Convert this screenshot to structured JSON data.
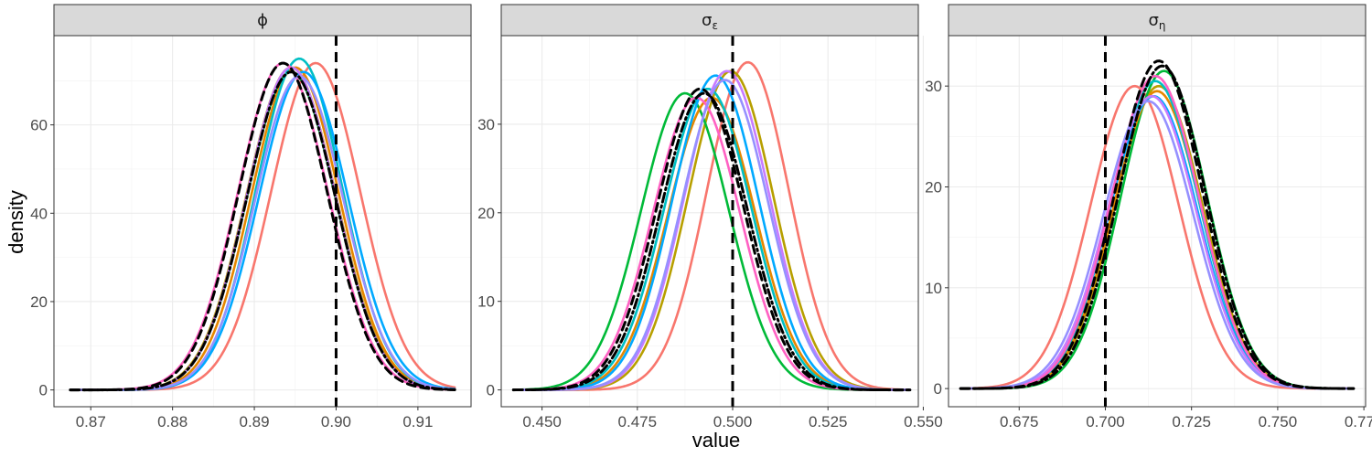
{
  "chart_data": {
    "type": "line",
    "subtype": "faceted density plot",
    "xlabel": "value",
    "ylabel": "density",
    "series_palette": [
      "#f8766d",
      "#b79f00",
      "#00ba38",
      "#e58700",
      "#00bfc4",
      "#00a9ff",
      "#c77cff",
      "#ff61c3",
      "#9590ff",
      "#619cff"
    ],
    "reference_line_color": "#000000",
    "facets": [
      {
        "title": "ϕ",
        "xlim": [
          0.8655,
          0.9165
        ],
        "ylim": [
          -3.8,
          80.2
        ],
        "xticks": [
          0.87,
          0.88,
          0.89,
          0.9,
          0.91
        ],
        "xtick_labels": [
          "0.87",
          "0.88",
          "0.89",
          "0.90",
          "0.91"
        ],
        "yticks": [
          0,
          20,
          40,
          60
        ],
        "ytick_labels": [
          "0",
          "20",
          "40",
          "60"
        ],
        "support": [
          0.8675,
          0.9145
        ],
        "true_value": 0.9,
        "densities": [
          {
            "color": "#f8766d",
            "mean": 0.8975,
            "sd": 0.00545,
            "peak": 74,
            "lw": 2.6
          },
          {
            "color": "#b79f00",
            "mean": 0.8945,
            "sd": 0.00545,
            "peak": 73,
            "lw": 2.6
          },
          {
            "color": "#00ba38",
            "mean": 0.8945,
            "sd": 0.0054,
            "peak": 72,
            "lw": 2.6
          },
          {
            "color": "#e58700",
            "mean": 0.895,
            "sd": 0.00535,
            "peak": 73,
            "lw": 2.6
          },
          {
            "color": "#00bfc4",
            "mean": 0.8955,
            "sd": 0.0053,
            "peak": 75,
            "lw": 2.6
          },
          {
            "color": "#00a9ff",
            "mean": 0.896,
            "sd": 0.00545,
            "peak": 72,
            "lw": 2.6
          },
          {
            "color": "#c77cff",
            "mean": 0.8945,
            "sd": 0.0054,
            "peak": 73,
            "lw": 2.6
          },
          {
            "color": "#ff61c3",
            "mean": 0.8935,
            "sd": 0.0055,
            "peak": 74,
            "lw": 2.6
          },
          {
            "color": "#9590ff",
            "mean": 0.8955,
            "sd": 0.0054,
            "peak": 71,
            "lw": 2.6
          },
          {
            "color": "#000000",
            "mean": 0.8935,
            "sd": 0.0054,
            "peak": 74,
            "lw": 3,
            "dash": "9 6"
          },
          {
            "color": "#000000",
            "mean": 0.8945,
            "sd": 0.0054,
            "peak": 72,
            "lw": 3,
            "dash": "10 4 2 4"
          }
        ]
      },
      {
        "title": "σ",
        "title_sub": "ε",
        "xlim": [
          0.4393,
          0.5487
        ],
        "ylim": [
          -1.9,
          40.0
        ],
        "xticks": [
          0.45,
          0.475,
          0.5,
          0.525,
          0.55
        ],
        "xtick_labels": [
          "0.450",
          "0.475",
          "0.500",
          "0.525",
          "0.550"
        ],
        "yticks": [
          0,
          10,
          20,
          30
        ],
        "ytick_labels": [
          "0",
          "10",
          "20",
          "30"
        ],
        "support": [
          0.4425,
          0.5465
        ],
        "true_value": 0.5,
        "densities": [
          {
            "color": "#f8766d",
            "mean": 0.504,
            "sd": 0.0108,
            "peak": 37,
            "lw": 2.6
          },
          {
            "color": "#b79f00",
            "mean": 0.4995,
            "sd": 0.0112,
            "peak": 36,
            "lw": 2.6
          },
          {
            "color": "#00ba38",
            "mean": 0.4875,
            "sd": 0.0115,
            "peak": 33.5,
            "lw": 2.6
          },
          {
            "color": "#e58700",
            "mean": 0.4945,
            "sd": 0.0114,
            "peak": 33,
            "lw": 2.6
          },
          {
            "color": "#00bfc4",
            "mean": 0.4935,
            "sd": 0.0114,
            "peak": 34,
            "lw": 2.6
          },
          {
            "color": "#00a9ff",
            "mean": 0.4955,
            "sd": 0.0113,
            "peak": 35.5,
            "lw": 2.6
          },
          {
            "color": "#c77cff",
            "mean": 0.4985,
            "sd": 0.0112,
            "peak": 36,
            "lw": 2.6
          },
          {
            "color": "#ff61c3",
            "mean": 0.4905,
            "sd": 0.0114,
            "peak": 33,
            "lw": 2.6
          },
          {
            "color": "#9590ff",
            "mean": 0.498,
            "sd": 0.0113,
            "peak": 35,
            "lw": 2.6
          },
          {
            "color": "#000000",
            "mean": 0.4915,
            "sd": 0.0114,
            "peak": 34,
            "lw": 3,
            "dash": "9 6"
          },
          {
            "color": "#000000",
            "mean": 0.4925,
            "sd": 0.0114,
            "peak": 33.5,
            "lw": 3,
            "dash": "10 4 2 4"
          }
        ]
      },
      {
        "title": "σ",
        "title_sub": "η",
        "xlim": [
          0.6545,
          0.7755
        ],
        "ylim": [
          -1.8,
          35.0
        ],
        "xticks": [
          0.675,
          0.7,
          0.725,
          0.75,
          0.775
        ],
        "xtick_labels": [
          "0.675",
          "0.700",
          "0.725",
          "0.750",
          "0.775"
        ],
        "yticks": [
          0,
          10,
          20,
          30
        ],
        "ytick_labels": [
          "0",
          "10",
          "20",
          "30"
        ],
        "support": [
          0.658,
          0.772
        ],
        "true_value": 0.7,
        "densities": [
          {
            "color": "#f8766d",
            "mean": 0.7085,
            "sd": 0.0128,
            "peak": 30,
            "lw": 2.6
          },
          {
            "color": "#b79f00",
            "mean": 0.7155,
            "sd": 0.0127,
            "peak": 30,
            "lw": 2.6
          },
          {
            "color": "#00ba38",
            "mean": 0.717,
            "sd": 0.0125,
            "peak": 31.5,
            "lw": 2.6
          },
          {
            "color": "#e58700",
            "mean": 0.715,
            "sd": 0.0127,
            "peak": 29.5,
            "lw": 2.6
          },
          {
            "color": "#00bfc4",
            "mean": 0.7145,
            "sd": 0.0127,
            "peak": 30.5,
            "lw": 2.6
          },
          {
            "color": "#00a9ff",
            "mean": 0.714,
            "sd": 0.0128,
            "peak": 29,
            "lw": 2.6
          },
          {
            "color": "#c77cff",
            "mean": 0.7135,
            "sd": 0.0129,
            "peak": 29,
            "lw": 2.6
          },
          {
            "color": "#ff61c3",
            "mean": 0.7145,
            "sd": 0.0128,
            "peak": 31,
            "lw": 2.6
          },
          {
            "color": "#9590ff",
            "mean": 0.7125,
            "sd": 0.013,
            "peak": 28.5,
            "lw": 2.6
          },
          {
            "color": "#000000",
            "mean": 0.7155,
            "sd": 0.0126,
            "peak": 32.5,
            "lw": 3,
            "dash": "9 6"
          },
          {
            "color": "#000000",
            "mean": 0.7165,
            "sd": 0.0126,
            "peak": 32,
            "lw": 3,
            "dash": "10 4 2 4"
          }
        ]
      }
    ]
  }
}
